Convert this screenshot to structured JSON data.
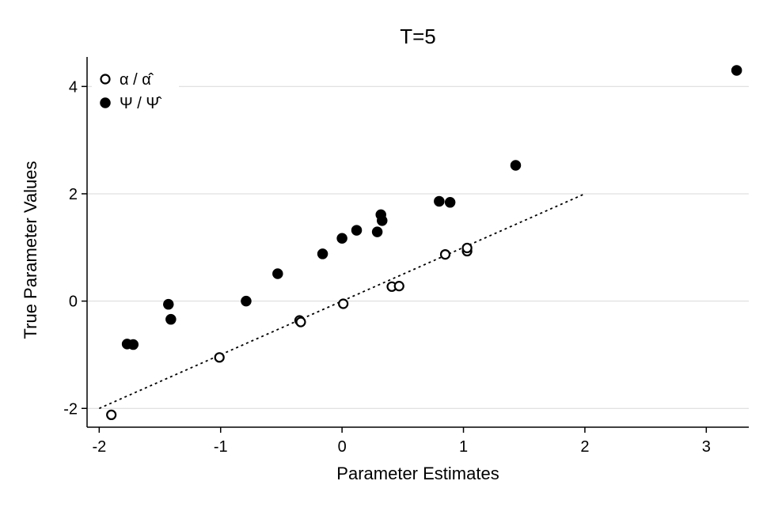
{
  "chart_data": {
    "type": "scatter",
    "title": "T=5",
    "xlabel": "Parameter Estimates",
    "ylabel": "True Parameter Values",
    "xlim": [
      -2.1,
      3.35
    ],
    "ylim": [
      -2.35,
      4.55
    ],
    "xticks": [
      -2,
      -1,
      0,
      1,
      2,
      3
    ],
    "yticks": [
      -2,
      0,
      2,
      4
    ],
    "grid": "horizontal",
    "legend_position": "top-left",
    "reference_line": {
      "style": "dotted",
      "x": [
        -2,
        2
      ],
      "y": [
        -2,
        2
      ]
    },
    "series": [
      {
        "name": "α / α̂",
        "marker": "hollow-circle",
        "color": "#000000",
        "x": [
          -1.9,
          -1.01,
          -0.35,
          -0.34,
          0.01,
          0.41,
          0.47,
          0.85,
          1.03,
          1.03
        ],
        "y": [
          -2.12,
          -1.05,
          -0.36,
          -0.39,
          -0.05,
          0.27,
          0.28,
          0.87,
          0.93,
          0.99
        ]
      },
      {
        "name": "Ψ / Ψ̂",
        "marker": "filled-circle",
        "color": "#000000",
        "x": [
          -1.77,
          -1.72,
          -1.43,
          -1.41,
          -0.79,
          -0.53,
          -0.16,
          0.0,
          0.12,
          0.29,
          0.32,
          0.33,
          0.8,
          0.89,
          1.43,
          3.25
        ],
        "y": [
          -0.8,
          -0.81,
          -0.06,
          -0.34,
          0.0,
          0.51,
          0.88,
          1.17,
          1.32,
          1.29,
          1.61,
          1.5,
          1.86,
          1.84,
          2.53,
          4.3
        ]
      }
    ]
  }
}
